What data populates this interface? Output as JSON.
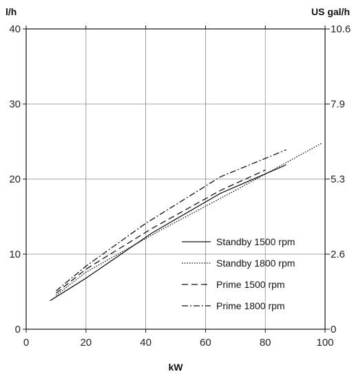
{
  "chart_data": {
    "type": "line",
    "xlabel": "kW",
    "ylabel": "l/h",
    "y2label": "US gal/h",
    "xlim": [
      0,
      100
    ],
    "ylim": [
      0,
      40
    ],
    "x_ticks": [
      "0",
      "20",
      "40",
      "60",
      "80",
      "100"
    ],
    "y_ticks": [
      "0",
      "10",
      "20",
      "30",
      "40"
    ],
    "y2_ticks": [
      "0",
      "2.6",
      "5.3",
      "7.9",
      "10.6"
    ],
    "grid": true,
    "legend_position": "bottom-right",
    "series": [
      {
        "name": "Standby 1500 rpm",
        "dash": "solid",
        "points": [
          [
            8,
            3.8
          ],
          [
            20,
            6.8
          ],
          [
            42,
            12.8
          ],
          [
            65,
            18.1
          ],
          [
            87,
            21.9
          ]
        ]
      },
      {
        "name": "Standby 1800 rpm",
        "dash": "dotted",
        "points": [
          [
            10,
            4.5
          ],
          [
            20,
            7.6
          ],
          [
            45,
            13.2
          ],
          [
            70,
            18.5
          ],
          [
            99,
            24.8
          ]
        ]
      },
      {
        "name": "Prime 1500 rpm",
        "dash": "dashed",
        "points": [
          [
            10,
            4.8
          ],
          [
            20,
            8.0
          ],
          [
            42,
            13.4
          ],
          [
            65,
            18.5
          ],
          [
            80,
            21.2
          ]
        ]
      },
      {
        "name": "Prime 1800 rpm",
        "dash": "dashdot",
        "points": [
          [
            10,
            5.1
          ],
          [
            20,
            8.4
          ],
          [
            40,
            14.1
          ],
          [
            65,
            20.3
          ],
          [
            87,
            23.9
          ]
        ]
      }
    ]
  }
}
